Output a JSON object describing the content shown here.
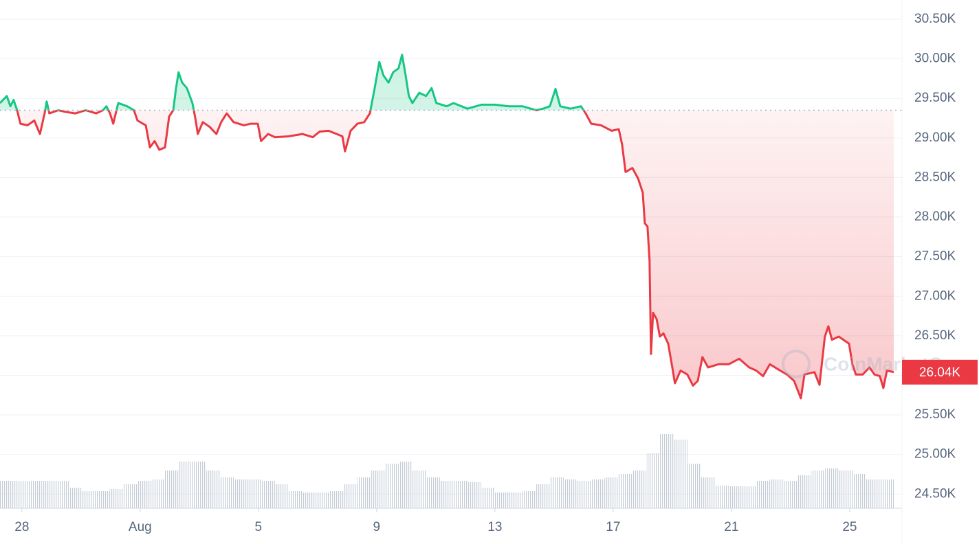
{
  "chart_data": {
    "type": "line",
    "up_color": "#16c784",
    "down_color": "#ea3943",
    "baseline": 29350,
    "grid": true,
    "watermark": "CoinMarketCap",
    "current_price": {
      "value": 26040,
      "label": "26.04K"
    },
    "xlim": [
      27.26,
      57.77
    ],
    "xticks": [
      28,
      {
        "value": 32,
        "label": "Aug"
      },
      {
        "value": 36,
        "label": "5"
      },
      {
        "value": 40,
        "label": "9"
      },
      {
        "value": 44,
        "label": "13"
      },
      {
        "value": 48,
        "label": "17"
      },
      {
        "value": 52,
        "label": "21"
      },
      {
        "value": 56,
        "label": "25"
      }
    ],
    "ylim": [
      24320,
      30743
    ],
    "yticks": [
      {
        "value": 24500,
        "label": "24.50K"
      },
      {
        "value": 25000,
        "label": "25.00K"
      },
      {
        "value": 25500,
        "label": "25.50K"
      },
      {
        "value": 26000,
        "label": "26.00K"
      },
      {
        "value": 26500,
        "label": "26.50K"
      },
      {
        "value": 27000,
        "label": "27.00K"
      },
      {
        "value": 27500,
        "label": "27.50K"
      },
      {
        "value": 28000,
        "label": "28.00K"
      },
      {
        "value": 28500,
        "label": "28.50K"
      },
      {
        "value": 29000,
        "label": "29.00K"
      },
      {
        "value": 29500,
        "label": "29.50K"
      },
      {
        "value": 30000,
        "label": "30.00K"
      },
      {
        "value": 30500,
        "label": "30.50K"
      }
    ],
    "price": {
      "x": [
        27.26,
        27.49,
        27.61,
        27.72,
        27.84,
        27.95,
        28.19,
        28.42,
        28.61,
        28.77,
        28.84,
        28.93,
        29.23,
        29.47,
        29.81,
        30.16,
        30.51,
        30.74,
        30.86,
        30.98,
        31.09,
        31.26,
        31.56,
        31.79,
        31.91,
        32.19,
        32.33,
        32.49,
        32.65,
        32.84,
        32.98,
        33.12,
        33.21,
        33.3,
        33.42,
        33.58,
        33.77,
        33.88,
        33.95,
        34.12,
        34.35,
        34.58,
        34.74,
        34.93,
        35.16,
        35.51,
        35.74,
        35.98,
        36.09,
        36.33,
        36.56,
        37.02,
        37.49,
        37.84,
        38.07,
        38.37,
        38.65,
        38.84,
        38.93,
        39.12,
        39.35,
        39.58,
        39.77,
        39.93,
        40.09,
        40.23,
        40.4,
        40.56,
        40.74,
        40.86,
        40.98,
        41.09,
        41.21,
        41.44,
        41.67,
        41.86,
        42.02,
        42.37,
        42.6,
        43.07,
        43.54,
        44.0,
        44.47,
        44.93,
        45.4,
        45.63,
        45.86,
        46.05,
        46.21,
        46.56,
        46.91,
        47.07,
        47.26,
        47.59,
        47.95,
        48.19,
        48.3,
        48.42,
        48.65,
        48.84,
        49.0,
        49.07,
        49.16,
        49.23,
        49.28,
        49.35,
        49.47,
        49.58,
        49.7,
        49.86,
        50.0,
        50.09,
        50.28,
        50.51,
        50.7,
        50.86,
        51.02,
        51.21,
        51.56,
        51.91,
        52.26,
        52.6,
        52.84,
        53.07,
        53.3,
        53.65,
        53.88,
        54.12,
        54.35,
        54.47,
        54.81,
        54.98,
        55.16,
        55.28,
        55.4,
        55.63,
        55.98,
        56.09,
        56.21,
        56.44,
        56.67,
        56.84,
        57.02,
        57.14,
        57.26,
        57.49
      ],
      "values": [
        29440,
        29530,
        29400,
        29480,
        29350,
        29180,
        29160,
        29220,
        29050,
        29310,
        29460,
        29310,
        29350,
        29330,
        29310,
        29350,
        29310,
        29350,
        29400,
        29310,
        29180,
        29440,
        29400,
        29350,
        29220,
        29160,
        28880,
        28960,
        28850,
        28880,
        29270,
        29350,
        29620,
        29830,
        29700,
        29630,
        29440,
        29220,
        29050,
        29200,
        29140,
        29050,
        29200,
        29310,
        29200,
        29160,
        29180,
        29180,
        28960,
        29050,
        29010,
        29020,
        29050,
        29010,
        29080,
        29090,
        29050,
        29020,
        28830,
        29090,
        29180,
        29200,
        29310,
        29620,
        29960,
        29790,
        29700,
        29830,
        29880,
        30050,
        29790,
        29530,
        29440,
        29570,
        29530,
        29630,
        29440,
        29400,
        29440,
        29370,
        29420,
        29420,
        29400,
        29400,
        29350,
        29370,
        29400,
        29620,
        29400,
        29370,
        29400,
        29310,
        29180,
        29160,
        29090,
        29110,
        28920,
        28570,
        28620,
        28490,
        28310,
        27920,
        27880,
        27450,
        26270,
        26790,
        26710,
        26490,
        26530,
        26400,
        26100,
        25900,
        26060,
        26010,
        25870,
        25930,
        26230,
        26100,
        26140,
        26140,
        26210,
        26100,
        26060,
        25990,
        26140,
        26060,
        26010,
        25930,
        25710,
        26010,
        26040,
        25880,
        26490,
        26620,
        26450,
        26490,
        26400,
        26140,
        26010,
        26010,
        26100,
        26010,
        25990,
        25840,
        26060,
        26040
      ]
    },
    "volume": {
      "color": "#c5ccd6",
      "lim": [
        0,
        130
      ],
      "x": [
        27.49,
        27.95,
        28.42,
        28.89,
        29.35,
        29.82,
        30.28,
        30.75,
        31.21,
        31.68,
        32.14,
        32.61,
        33.07,
        33.54,
        34.0,
        34.47,
        34.93,
        35.4,
        35.86,
        36.33,
        36.79,
        37.26,
        37.72,
        38.19,
        38.65,
        39.12,
        39.58,
        40.05,
        40.51,
        40.98,
        41.44,
        41.91,
        42.37,
        42.84,
        43.3,
        43.77,
        44.23,
        44.7,
        45.16,
        45.63,
        46.09,
        46.56,
        47.02,
        47.49,
        47.95,
        48.42,
        48.88,
        49.35,
        49.81,
        50.28,
        50.74,
        51.21,
        51.67,
        52.14,
        52.6,
        53.07,
        53.53,
        54.0,
        54.46,
        54.93,
        55.4,
        55.86,
        56.33,
        56.79,
        57.26
      ],
      "values": [
        40,
        40,
        40,
        40,
        40,
        30,
        25,
        25,
        28,
        35,
        40,
        42,
        55,
        68,
        68,
        55,
        45,
        42,
        42,
        40,
        35,
        25,
        23,
        23,
        25,
        35,
        45,
        55,
        65,
        68,
        55,
        45,
        40,
        40,
        38,
        30,
        23,
        23,
        25,
        35,
        45,
        42,
        40,
        42,
        45,
        50,
        55,
        80,
        108,
        100,
        65,
        45,
        33,
        32,
        32,
        40,
        42,
        40,
        48,
        55,
        58,
        55,
        50,
        42,
        42
      ]
    }
  }
}
